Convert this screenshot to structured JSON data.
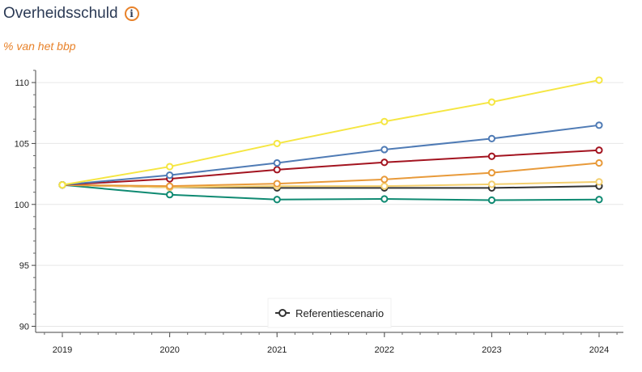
{
  "header": {
    "title": "Overheidsschuld",
    "info_icon": "info-icon",
    "subtitle": "% van het bbp"
  },
  "colors": {
    "title": "#2b3a55",
    "accent": "#e8822a"
  },
  "chart_data": {
    "type": "line",
    "title": "Overheidsschuld",
    "subtitle": "% van het bbp",
    "xlabel": "",
    "ylabel": "",
    "x": [
      2019,
      2020,
      2021,
      2022,
      2023,
      2024
    ],
    "ylim": [
      89.5,
      111
    ],
    "yticks": [
      90,
      95,
      100,
      105,
      110
    ],
    "grid": "horizontal",
    "legend_position": "bottom-center",
    "series": [
      {
        "color": "#f5e642",
        "values": [
          101.6,
          103.1,
          105.0,
          106.8,
          108.4,
          110.2
        ]
      },
      {
        "color": "#4f7bb5",
        "values": [
          101.6,
          102.4,
          103.4,
          104.5,
          105.4,
          106.5
        ]
      },
      {
        "color": "#a31420",
        "values": [
          101.6,
          102.1,
          102.85,
          103.45,
          103.95,
          104.45
        ]
      },
      {
        "color": "#e89a3a",
        "values": [
          101.6,
          101.5,
          101.7,
          102.05,
          102.6,
          103.4
        ]
      },
      {
        "color": "#f3cf6e",
        "values": [
          101.6,
          101.4,
          101.5,
          101.5,
          101.65,
          101.85
        ]
      },
      {
        "name": "Referentiescenario",
        "color": "#333333",
        "values": [
          101.6,
          101.4,
          101.35,
          101.35,
          101.35,
          101.5
        ]
      },
      {
        "color": "#0f8a72",
        "values": [
          101.6,
          100.8,
          100.4,
          100.45,
          100.35,
          100.4
        ]
      }
    ]
  }
}
